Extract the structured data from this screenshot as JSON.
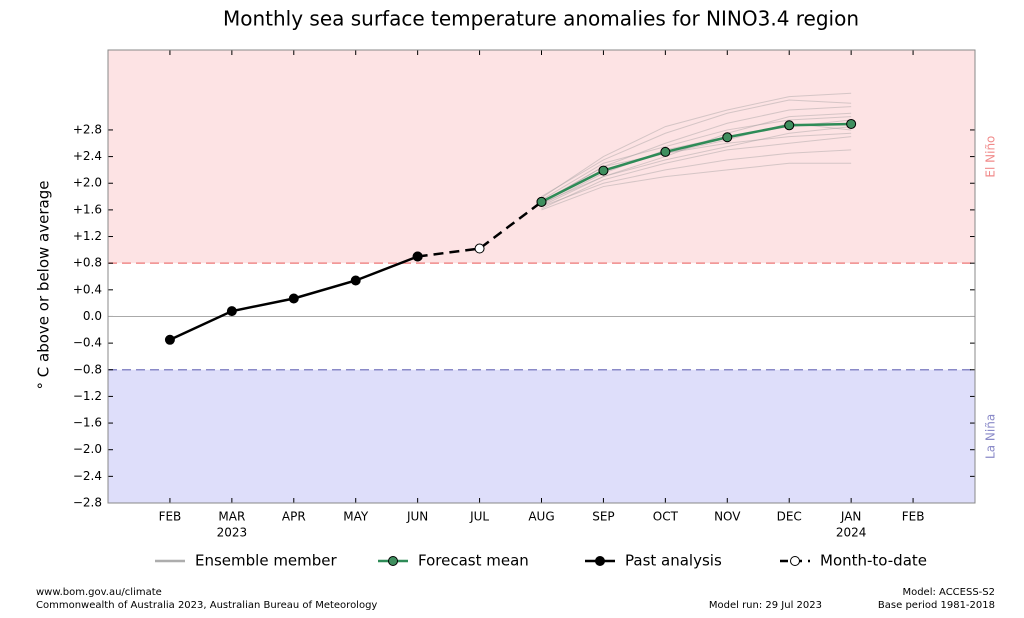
{
  "chart_data": {
    "type": "line",
    "title": "Monthly sea surface temperature anomalies for NINO3.4 region",
    "ylabel": "° C above or below average",
    "categories": [
      "FEB",
      "MAR",
      "APR",
      "MAY",
      "JUN",
      "JUL",
      "AUG",
      "SEP",
      "OCT",
      "NOV",
      "DEC",
      "JAN",
      "FEB"
    ],
    "category_years": [
      null,
      "2023",
      null,
      null,
      null,
      null,
      null,
      null,
      null,
      null,
      null,
      "2024",
      null
    ],
    "ylim": [
      -2.8,
      4.0
    ],
    "yticks": [
      {
        "value": -2.8,
        "label": "−2.8"
      },
      {
        "value": -2.4,
        "label": "−2.4"
      },
      {
        "value": -2.0,
        "label": "−2.0"
      },
      {
        "value": -1.6,
        "label": "−1.6"
      },
      {
        "value": -1.2,
        "label": "−1.2"
      },
      {
        "value": -0.8,
        "label": "−0.8"
      },
      {
        "value": -0.4,
        "label": "−0.4"
      },
      {
        "value": 0,
        "label": "0.0"
      },
      {
        "value": 0.4,
        "label": "+0.4"
      },
      {
        "value": 0.8,
        "label": "+0.8"
      },
      {
        "value": 1.2,
        "label": "+1.2"
      },
      {
        "value": 1.6,
        "label": "+1.6"
      },
      {
        "value": 2.0,
        "label": "+2.0"
      },
      {
        "value": 2.4,
        "label": "+2.4"
      },
      {
        "value": 2.8,
        "label": "+2.8"
      }
    ],
    "thresholds": [
      {
        "value": 0.8,
        "label": "El Niño",
        "color": "#f08a8a",
        "fill": "#fde3e4"
      },
      {
        "value": -0.8,
        "label": "La Niña",
        "color": "#8a8ac8",
        "fill": "#dedefa"
      }
    ],
    "series": [
      {
        "name": "Ensemble member",
        "color": "#999999",
        "members": [
          [
            null,
            null,
            null,
            null,
            null,
            null,
            1.72,
            2.25,
            2.6,
            2.9,
            3.1,
            3.15,
            null
          ],
          [
            null,
            null,
            null,
            null,
            null,
            null,
            1.65,
            2.0,
            2.2,
            2.35,
            2.45,
            2.5,
            null
          ],
          [
            null,
            null,
            null,
            null,
            null,
            null,
            1.8,
            2.35,
            2.75,
            3.05,
            3.25,
            3.2,
            null
          ],
          [
            null,
            null,
            null,
            null,
            null,
            null,
            1.7,
            2.1,
            2.35,
            2.55,
            2.75,
            2.85,
            null
          ],
          [
            null,
            null,
            null,
            null,
            null,
            null,
            1.6,
            1.95,
            2.1,
            2.2,
            2.3,
            2.3,
            null
          ],
          [
            null,
            null,
            null,
            null,
            null,
            null,
            1.75,
            2.3,
            2.55,
            2.8,
            2.95,
            3.0,
            null
          ],
          [
            null,
            null,
            null,
            null,
            null,
            null,
            1.68,
            2.15,
            2.5,
            2.7,
            2.85,
            2.95,
            null
          ],
          [
            null,
            null,
            null,
            null,
            null,
            null,
            1.78,
            2.4,
            2.85,
            3.1,
            3.3,
            3.35,
            null
          ],
          [
            null,
            null,
            null,
            null,
            null,
            null,
            1.62,
            2.05,
            2.3,
            2.5,
            2.6,
            2.7,
            null
          ],
          [
            null,
            null,
            null,
            null,
            null,
            null,
            1.73,
            2.2,
            2.45,
            2.65,
            2.9,
            2.8,
            null
          ],
          [
            null,
            null,
            null,
            null,
            null,
            null,
            1.7,
            2.25,
            2.45,
            2.6,
            2.7,
            2.75,
            null
          ],
          [
            null,
            null,
            null,
            null,
            null,
            null,
            1.66,
            2.1,
            2.4,
            2.75,
            3.0,
            3.05,
            null
          ]
        ]
      },
      {
        "name": "Forecast mean",
        "color": "#2e8b57",
        "marker_fill": "#3f8f5f",
        "values": [
          null,
          null,
          null,
          null,
          null,
          null,
          1.72,
          2.19,
          2.47,
          2.69,
          2.87,
          2.89,
          null
        ]
      },
      {
        "name": "Past analysis",
        "color": "#000000",
        "marker_fill": "#000000",
        "values": [
          -0.35,
          0.08,
          0.27,
          0.54,
          0.9,
          null,
          null,
          null,
          null,
          null,
          null,
          null,
          null
        ]
      },
      {
        "name": "Month-to-date",
        "color": "#000000",
        "marker_fill": "#ffffff",
        "dashed": true,
        "values": [
          null,
          null,
          null,
          null,
          0.9,
          1.02,
          1.72,
          null,
          null,
          null,
          null,
          null,
          null
        ]
      }
    ],
    "footer_left": [
      "www.bom.gov.au/climate",
      "Commonwealth of Australia 2023, Australian Bureau of Meteorology"
    ],
    "model_run": "Model run: 29 Jul 2023",
    "footer_right": [
      "Model: ACCESS-S2",
      "Base period 1981-2018"
    ]
  }
}
